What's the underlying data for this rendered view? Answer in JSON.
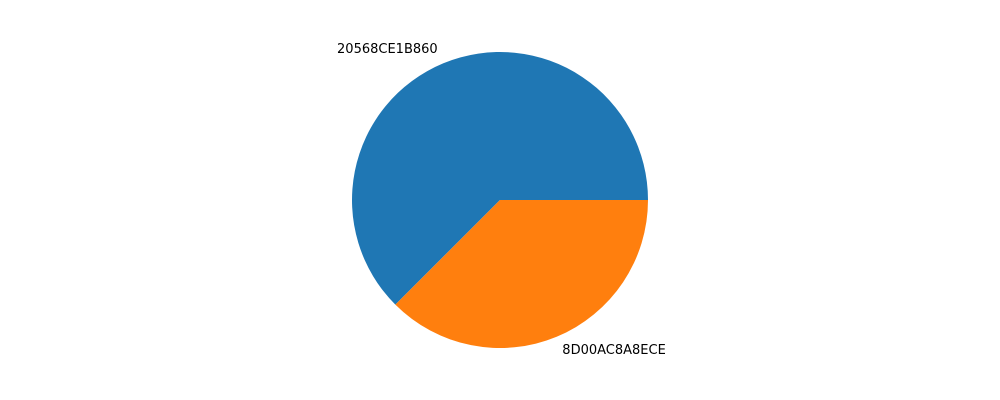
{
  "chart_data": {
    "type": "pie",
    "title": "",
    "labels": [
      "20568CE1B860",
      "8D00AC8A8ECE"
    ],
    "values": [
      62.5,
      37.5
    ],
    "colors": [
      "#1f77b4",
      "#ff7f0e"
    ],
    "start_angle_deg": 0,
    "direction": "counterclockwise"
  }
}
